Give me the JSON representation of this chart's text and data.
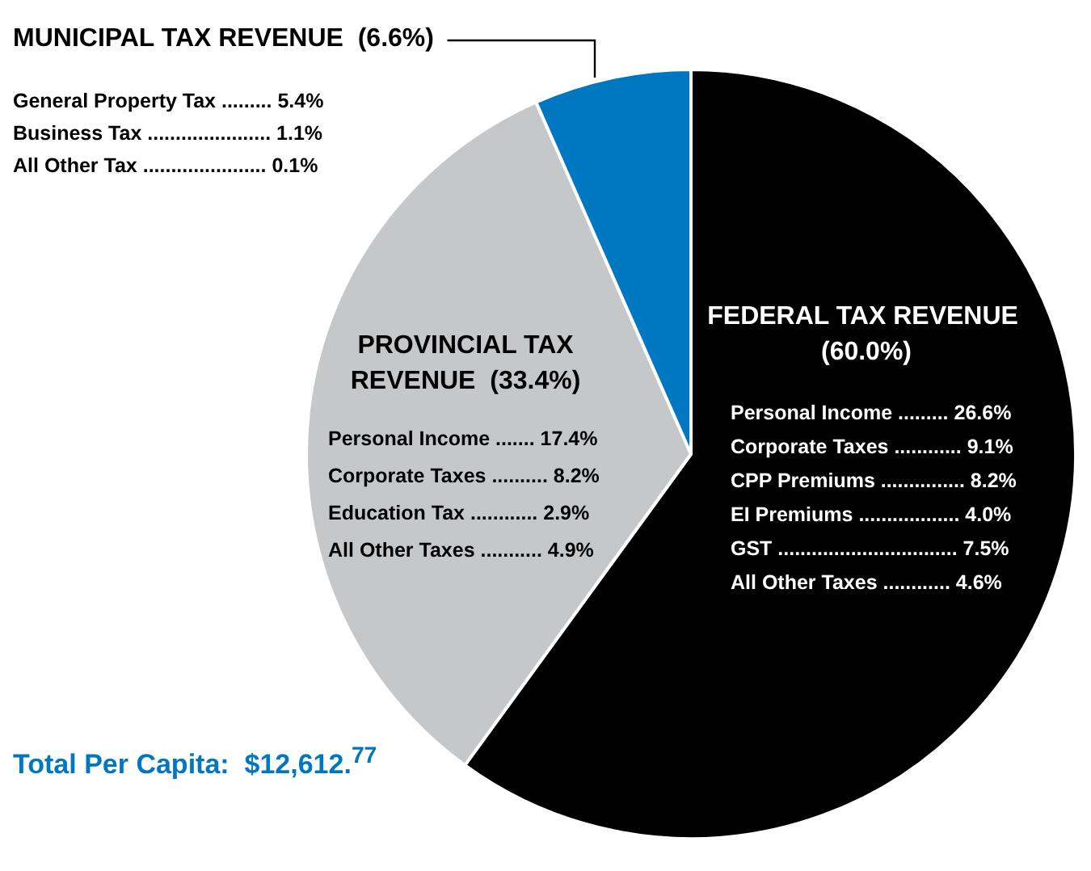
{
  "chart_data": {
    "type": "pie",
    "categories": [
      "FEDERAL TAX REVENUE",
      "PROVINCIAL TAX REVENUE",
      "MUNICIPAL TAX REVENUE"
    ],
    "values": [
      60.0,
      33.4,
      6.6
    ],
    "value_labels": [
      "(60.0%)",
      "(33.4%)",
      "(6.6%)"
    ],
    "colors": [
      "#000000",
      "#c6c7c9",
      "#0077c1"
    ],
    "legend": false,
    "annotations": [
      "Personal Income ......... 26.6%",
      "Corporate Taxes ............ 9.1%",
      "CPP Premiums ............... 8.2%",
      "EI Premiums .................. 4.0%",
      "GST ................................ 7.5%",
      "All Other Taxes ............ 4.6%",
      "Personal Income ....... 17.4%",
      "Corporate Taxes .......... 8.2%",
      "Education Tax ............ 2.9%",
      "All Other Taxes ........... 4.9%",
      "General Property Tax ......... 5.4%",
      "Business Tax ...................... 1.1%",
      "All Other Tax ...................... 0.1%",
      "Total Per Capita:  $12,612.$^{77}$"
    ]
  }
}
